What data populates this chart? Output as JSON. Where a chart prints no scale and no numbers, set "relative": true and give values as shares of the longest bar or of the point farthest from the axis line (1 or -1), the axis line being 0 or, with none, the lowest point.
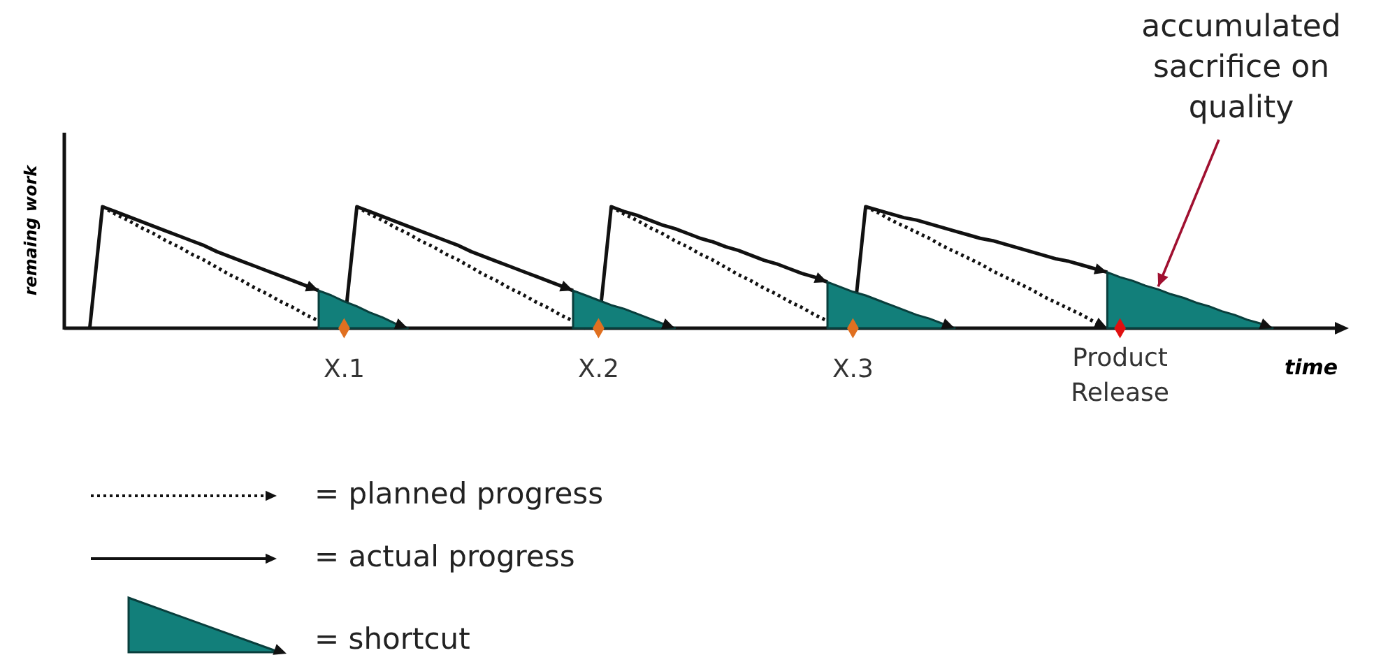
{
  "chart_data": {
    "type": "line",
    "relative": true,
    "xlabel": "time",
    "ylabel": "remaing work",
    "categories": [
      null,
      null,
      null,
      null,
      null,
      null,
      null,
      null,
      null,
      null,
      null,
      null,
      null,
      null,
      null,
      null,
      null,
      null,
      null,
      null,
      null,
      null,
      "X.1",
      null,
      null,
      null,
      null,
      null,
      null,
      null,
      null,
      null,
      null,
      null,
      null,
      null,
      null,
      null,
      null,
      null,
      null,
      null,
      "X.2",
      null,
      null,
      null,
      null,
      null,
      null,
      null,
      null,
      null,
      null,
      null,
      null,
      null,
      null,
      null,
      null,
      null,
      null,
      null,
      "X.3",
      null,
      null,
      null,
      null,
      null,
      null,
      null,
      null,
      null,
      null,
      null,
      null,
      null,
      null,
      null,
      null,
      null,
      null,
      null,
      null,
      "Product Release",
      null,
      null,
      null,
      null,
      null,
      null,
      null,
      null,
      null,
      null,
      null,
      null,
      null,
      null,
      null,
      null,
      null
    ],
    "tick_labels": "x",
    "legend": "bottom left",
    "series": [
      {
        "name": "= planned progress",
        "line_style": "dotted",
        "color": "#111111",
        "values": [
          null,
          null,
          null,
          1,
          0.94,
          0.89,
          0.83,
          0.78,
          0.72,
          0.67,
          0.61,
          0.56,
          0.5,
          0.44,
          0.39,
          0.33,
          0.28,
          0.22,
          0.17,
          0.11,
          0.06,
          0,
          null,
          1,
          0.94,
          0.89,
          0.83,
          0.78,
          0.72,
          0.67,
          0.61,
          0.56,
          0.5,
          0.44,
          0.39,
          0.33,
          0.28,
          0.22,
          0.17,
          0.11,
          0.06,
          0,
          null,
          1,
          0.94,
          0.89,
          0.83,
          0.78,
          0.72,
          0.67,
          0.61,
          0.56,
          0.5,
          0.44,
          0.39,
          0.33,
          0.28,
          0.22,
          0.17,
          0.11,
          0.06,
          0,
          null,
          1,
          0.95,
          0.89,
          0.84,
          0.79,
          0.74,
          0.68,
          0.63,
          0.58,
          0.53,
          0.47,
          0.42,
          0.37,
          0.32,
          0.26,
          0.21,
          0.16,
          0.11,
          0.05,
          0,
          null,
          null,
          null,
          null,
          null,
          null,
          null,
          null,
          null,
          null,
          null,
          null,
          null,
          null,
          null,
          null,
          null,
          null
        ]
      },
      {
        "name": "= actual progress",
        "line_style": "solid",
        "color": "#111111",
        "values": [
          null,
          null,
          0,
          1,
          0.96,
          0.92,
          0.88,
          0.84,
          0.8,
          0.76,
          0.72,
          0.68,
          0.63,
          0.59,
          0.55,
          0.51,
          0.47,
          0.43,
          0.39,
          0.35,
          0.31,
          null,
          0,
          1,
          0.96,
          0.92,
          0.88,
          0.84,
          0.8,
          0.76,
          0.72,
          0.68,
          0.63,
          0.59,
          0.55,
          0.51,
          0.47,
          0.43,
          0.39,
          0.35,
          0.31,
          null,
          0,
          1,
          0.96,
          0.93,
          0.89,
          0.85,
          0.82,
          0.78,
          0.74,
          0.71,
          0.67,
          0.64,
          0.6,
          0.56,
          0.53,
          0.49,
          0.45,
          0.42,
          0.38,
          null,
          0,
          1,
          0.97,
          0.94,
          0.91,
          0.89,
          0.86,
          0.83,
          0.8,
          0.77,
          0.74,
          0.72,
          0.69,
          0.66,
          0.63,
          0.6,
          0.57,
          0.55,
          0.52,
          0.49,
          0.46,
          null,
          null,
          null,
          null,
          null,
          null,
          null,
          null,
          null,
          null,
          null,
          null,
          null,
          null,
          null,
          null,
          null,
          null
        ]
      },
      {
        "name": "= shortcut",
        "type": "area",
        "color": "#127f7a",
        "values": [
          null,
          null,
          null,
          null,
          null,
          null,
          null,
          null,
          null,
          null,
          null,
          null,
          null,
          null,
          null,
          null,
          null,
          null,
          null,
          null,
          0.31,
          0.27,
          0.22,
          0.18,
          0.13,
          0.09,
          0.04,
          0,
          null,
          null,
          null,
          null,
          null,
          null,
          null,
          null,
          null,
          null,
          null,
          null,
          0.31,
          0.27,
          0.23,
          0.19,
          0.16,
          0.12,
          0.08,
          0.04,
          0,
          null,
          null,
          null,
          null,
          null,
          null,
          null,
          null,
          null,
          null,
          null,
          0.38,
          0.34,
          0.3,
          0.27,
          0.23,
          0.19,
          0.15,
          0.11,
          0.08,
          0.04,
          0,
          null,
          null,
          null,
          null,
          null,
          null,
          null,
          null,
          null,
          null,
          null,
          0.46,
          0.42,
          0.39,
          0.35,
          0.32,
          0.28,
          0.25,
          0.21,
          0.18,
          0.14,
          0.11,
          0.07,
          0.04,
          0,
          null,
          null,
          null,
          null,
          null
        ]
      },
      {
        "type": "scatter",
        "marker": "diamond",
        "colors": [
          null,
          null,
          null,
          null,
          null,
          null,
          null,
          null,
          null,
          null,
          null,
          null,
          null,
          null,
          null,
          null,
          null,
          null,
          null,
          null,
          null,
          null,
          "#e07020",
          null,
          null,
          null,
          null,
          null,
          null,
          null,
          null,
          null,
          null,
          null,
          null,
          null,
          null,
          null,
          null,
          null,
          null,
          null,
          "#e07020",
          null,
          null,
          null,
          null,
          null,
          null,
          null,
          null,
          null,
          null,
          null,
          null,
          null,
          null,
          null,
          null,
          null,
          null,
          null,
          "#e07020",
          null,
          null,
          null,
          null,
          null,
          null,
          null,
          null,
          null,
          null,
          null,
          null,
          null,
          null,
          null,
          null,
          null,
          null,
          null,
          null,
          "#e01010",
          null,
          null,
          null,
          null,
          null,
          null,
          null,
          null,
          null,
          null,
          null,
          null,
          null,
          null,
          null,
          null,
          null
        ],
        "values": [
          null,
          null,
          null,
          null,
          null,
          null,
          null,
          null,
          null,
          null,
          null,
          null,
          null,
          null,
          null,
          null,
          null,
          null,
          null,
          null,
          null,
          null,
          0,
          null,
          null,
          null,
          null,
          null,
          null,
          null,
          null,
          null,
          null,
          null,
          null,
          null,
          null,
          null,
          null,
          null,
          null,
          null,
          0,
          null,
          null,
          null,
          null,
          null,
          null,
          null,
          null,
          null,
          null,
          null,
          null,
          null,
          null,
          null,
          null,
          null,
          null,
          null,
          0,
          null,
          null,
          null,
          null,
          null,
          null,
          null,
          null,
          null,
          null,
          null,
          null,
          null,
          null,
          null,
          null,
          null,
          null,
          null,
          null,
          0,
          null,
          null,
          null,
          null,
          null,
          null,
          null,
          null,
          null,
          null,
          null,
          null,
          null,
          null,
          null,
          null,
          null
        ]
      }
    ],
    "annotations": [
      "accumulated sacrifice on quality"
    ]
  }
}
